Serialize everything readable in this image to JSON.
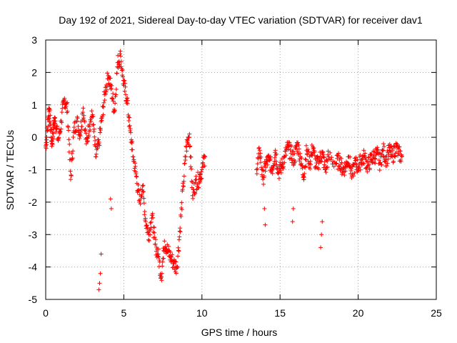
{
  "chart_data": {
    "type": "scatter",
    "title": "Day 192 of 2021, Sidereal Day-to-day VTEC variation (SDTVAR) for receiver dav1",
    "xlabel": "GPS time / hours",
    "ylabel": "SDTVAR / TECUs",
    "xlim": [
      0,
      25
    ],
    "ylim": [
      -5,
      3
    ],
    "xticks": [
      0,
      5,
      10,
      15,
      20,
      25
    ],
    "yticks": [
      -5,
      -4,
      -3,
      -2,
      -1,
      0,
      1,
      2,
      3
    ],
    "xtick_labels": [
      "0",
      "5",
      "10",
      "15",
      "20",
      "25"
    ],
    "ytick_labels": [
      "-5",
      "-4",
      "-3",
      "-2",
      "-1",
      "0",
      "1",
      "2",
      "3"
    ],
    "grid": true,
    "marker": "+",
    "color": "#ff0000",
    "series": [
      {
        "name": "SDTVAR",
        "x": [
          0.0,
          0.1,
          0.2,
          0.3,
          0.4,
          0.5,
          0.6,
          0.8,
          1.0,
          1.2,
          1.4,
          1.6,
          1.8,
          2.0,
          2.2,
          2.4,
          2.6,
          2.8,
          3.0,
          3.2,
          3.4,
          3.6,
          3.8,
          4.0,
          4.2,
          4.4,
          4.6,
          4.8,
          5.0,
          5.2,
          5.4,
          5.6,
          5.8,
          6.0,
          6.2,
          6.4,
          6.6,
          6.8,
          7.0,
          7.2,
          7.4,
          7.6,
          7.8,
          8.0,
          8.2,
          8.4,
          8.6,
          8.8,
          9.0,
          9.2,
          9.4,
          9.6,
          9.8,
          10.0,
          10.2,
          13.5,
          13.7,
          13.9,
          14.1,
          14.3,
          14.5,
          14.7,
          14.9,
          15.1,
          15.3,
          15.5,
          15.7,
          15.9,
          16.1,
          16.3,
          16.5,
          16.7,
          16.9,
          17.1,
          17.3,
          17.5,
          17.7,
          17.9,
          18.1,
          18.6,
          18.8,
          19.0,
          19.2,
          19.4,
          19.6,
          19.8,
          20.0,
          20.2,
          20.4,
          20.6,
          20.8,
          21.0,
          21.2,
          21.4,
          21.6,
          21.8,
          22.0,
          22.2,
          22.4,
          22.6,
          22.8
        ],
        "y": [
          -0.3,
          0.2,
          0.9,
          0.4,
          -0.2,
          0.3,
          0.6,
          -0.1,
          0.5,
          1.2,
          0.8,
          -1.3,
          0.2,
          0.5,
          0.1,
          0.9,
          -0.2,
          0.4,
          0.7,
          -0.6,
          -0.2,
          0.6,
          1.4,
          1.9,
          1.5,
          0.8,
          2.3,
          2.5,
          1.6,
          1.2,
          0.2,
          -0.6,
          -1.2,
          -2.0,
          -1.5,
          -2.6,
          -3.0,
          -2.4,
          -3.3,
          -3.6,
          -4.3,
          -3.2,
          -3.5,
          -3.7,
          -3.9,
          -4.0,
          -2.8,
          -1.5,
          -0.3,
          0.1,
          -1.8,
          -1.4,
          -1.3,
          -1.0,
          -0.6,
          -1.0,
          -0.4,
          -1.3,
          -0.8,
          -0.7,
          -1.0,
          -0.4,
          -1.1,
          -0.9,
          -0.6,
          -0.3,
          -0.5,
          -0.7,
          -0.2,
          -0.6,
          -1.2,
          -0.4,
          -0.8,
          -0.3,
          -0.9,
          -0.7,
          -0.5,
          -1.0,
          -0.6,
          -0.8,
          -0.7,
          -1.0,
          -0.9,
          -0.6,
          -1.2,
          -0.8,
          -0.9,
          -0.7,
          -0.6,
          -0.9,
          -0.7,
          -0.6,
          -0.5,
          -0.8,
          -0.4,
          -0.7,
          -0.4,
          -0.6,
          -0.3,
          -0.5,
          -0.6
        ]
      }
    ],
    "outliers": {
      "x": [
        3.4,
        3.45,
        3.5,
        3.55,
        4.15,
        4.2,
        14.0,
        14.05,
        15.8,
        15.85,
        17.6,
        17.65,
        17.7
      ],
      "y": [
        -4.7,
        -4.5,
        -4.2,
        -3.6,
        -1.9,
        -2.2,
        -2.2,
        -2.7,
        -2.6,
        -2.2,
        -3.4,
        -3.0,
        -2.6
      ]
    }
  }
}
